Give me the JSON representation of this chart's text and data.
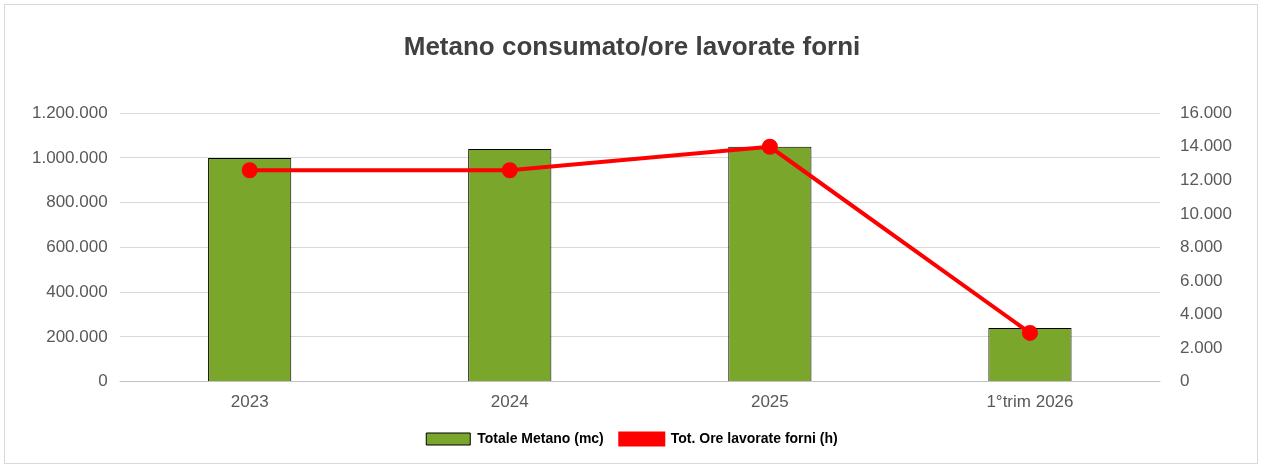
{
  "chart_data": {
    "type": "bar",
    "title": "Metano consumato/ore lavorate forni",
    "categories": [
      "2023",
      "2024",
      "2025",
      "1°trim 2026"
    ],
    "series": [
      {
        "name": "Totale Metano (mc)",
        "color": "#7aa62b",
        "values": [
          1000000,
          1040000,
          1050000,
          240000
        ]
      },
      {
        "name": "Tot. Ore lavorate forni (h)",
        "type": "line",
        "axis": "y2",
        "color": "#ff0000",
        "marker": "circle",
        "values": [
          12600,
          12600,
          14000,
          2900
        ]
      }
    ],
    "ylim": [
      0,
      1200000
    ],
    "yticks": [
      {
        "value": 0,
        "label": "0"
      },
      {
        "value": 200000,
        "label": "200.000"
      },
      {
        "value": 400000,
        "label": "400.000"
      },
      {
        "value": 600000,
        "label": "600.000"
      },
      {
        "value": 800000,
        "label": "800.000"
      },
      {
        "value": 1000000,
        "label": "1.000.000"
      },
      {
        "value": 1200000,
        "label": "1.200.000"
      }
    ],
    "y2lim": [
      0,
      16000
    ],
    "y2ticks": [
      {
        "value": 0,
        "label": "0"
      },
      {
        "value": 2000,
        "label": "2.000"
      },
      {
        "value": 4000,
        "label": "4.000"
      },
      {
        "value": 6000,
        "label": "6.000"
      },
      {
        "value": 8000,
        "label": "8.000"
      },
      {
        "value": 10000,
        "label": "10.000"
      },
      {
        "value": 12000,
        "label": "12.000"
      },
      {
        "value": 14000,
        "label": "14.000"
      },
      {
        "value": 16000,
        "label": "16.000"
      }
    ],
    "grid": "y",
    "legend": "bottom"
  }
}
